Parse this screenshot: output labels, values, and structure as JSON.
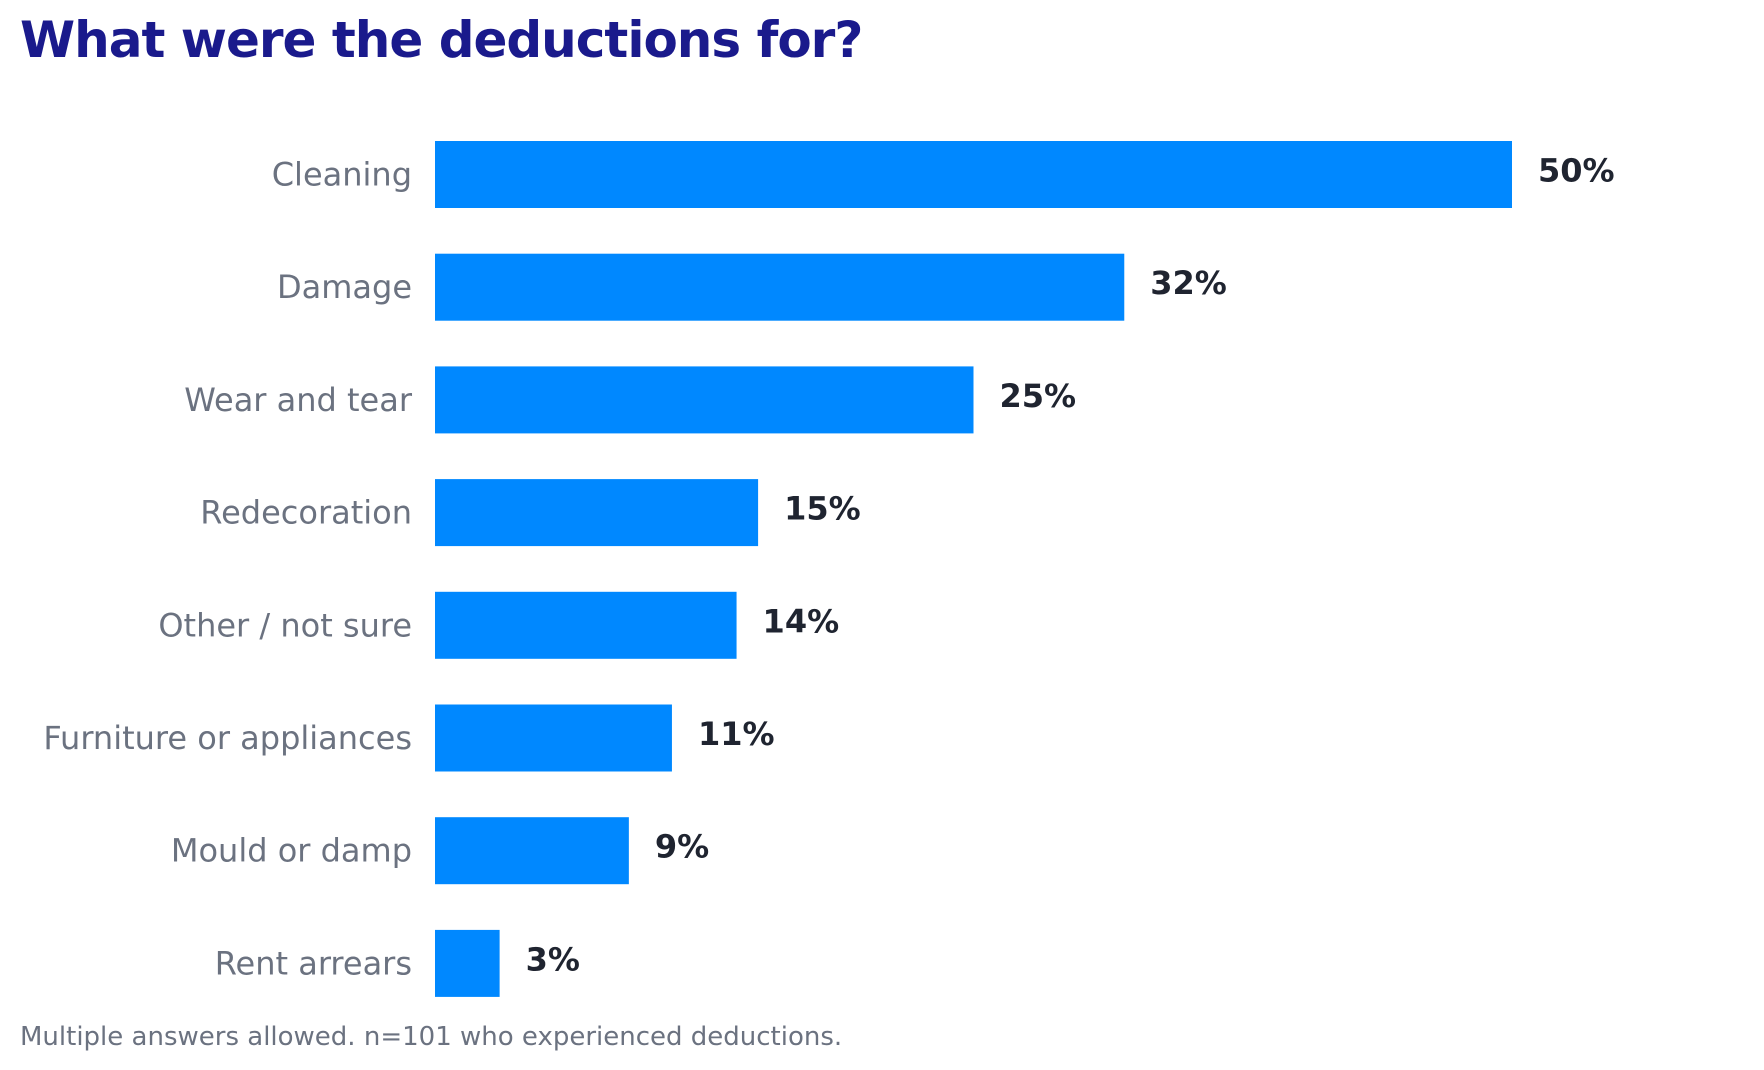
{
  "colors": {
    "title": "#1a1a8c",
    "bar": "#0088ff",
    "category_label": "#6b7280",
    "value_label": "#1f2430",
    "footnote": "#6b7280"
  },
  "chart_data": {
    "type": "bar",
    "orientation": "horizontal",
    "title": "What were the deductions for?",
    "categories": [
      "Cleaning",
      "Damage",
      "Wear and tear",
      "Redecoration",
      "Other / not sure",
      "Furniture or appliances",
      "Mould or damp",
      "Rent arrears"
    ],
    "values": [
      50,
      32,
      25,
      15,
      14,
      11,
      9,
      3
    ],
    "value_labels": [
      "50%",
      "32%",
      "25%",
      "15%",
      "14%",
      "11%",
      "9%",
      "3%"
    ],
    "xlim": [
      0,
      50
    ],
    "grid": false,
    "legend": "none",
    "footnote": "Multiple answers allowed. n=101 who experienced deductions."
  }
}
